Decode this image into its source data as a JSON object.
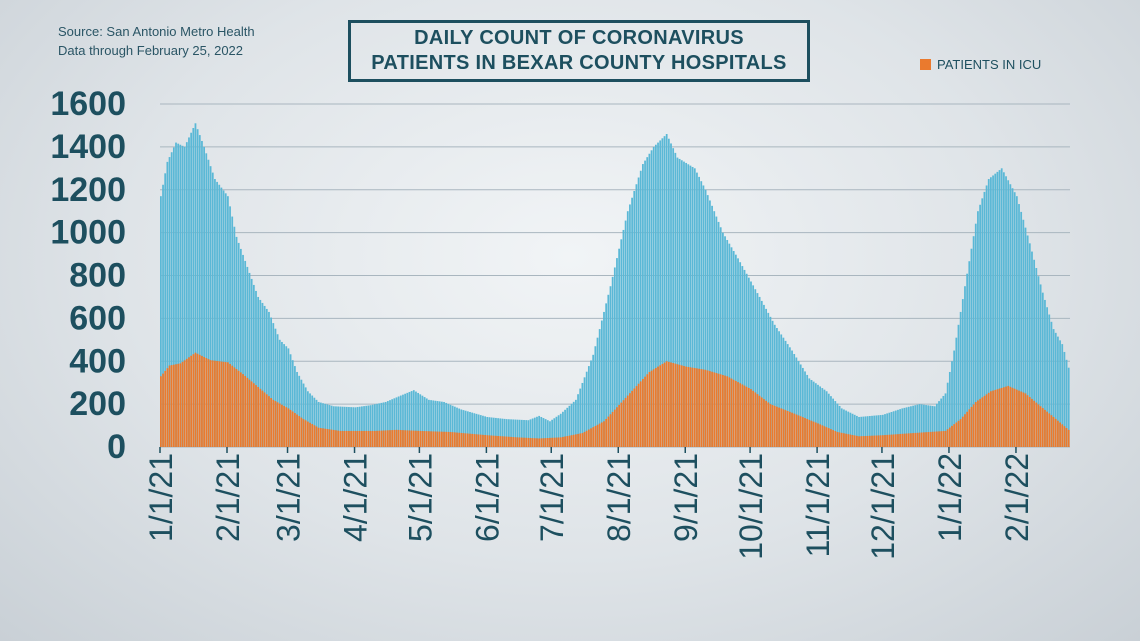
{
  "source_lines": [
    "Source: San Antonio Metro Health",
    "Data through February 25, 2022"
  ],
  "title_lines": [
    "DAILY COUNT OF CORONAVIRUS",
    "PATIENTS IN BEXAR COUNTY HOSPITALS"
  ],
  "legend": {
    "icu_label": "PATIENTS IN ICU"
  },
  "colors": {
    "total": "#5ab8d6",
    "icu": "#ea7a2e",
    "axis_text": "#1d4f5f",
    "grid": "#a9b6bf"
  },
  "chart_data": {
    "type": "bar",
    "title": "DAILY COUNT OF CORONAVIRUS PATIENTS IN BEXAR COUNTY HOSPITALS",
    "xlabel": "",
    "ylabel": "",
    "ylim": [
      0,
      1600
    ],
    "yticks": [
      0,
      200,
      400,
      600,
      800,
      1000,
      1200,
      1400,
      1600
    ],
    "x_tick_labels": [
      "1/1/21",
      "2/1/21",
      "3/1/21",
      "4/1/21",
      "5/1/21",
      "6/1/21",
      "7/1/21",
      "8/1/21",
      "9/1/21",
      "10/1/21",
      "11/1/21",
      "12/1/21",
      "1/1/22",
      "2/1/22"
    ],
    "grid": true,
    "legend_position": "top-right",
    "stacked": false,
    "x_start": "2021-01-01",
    "x_end": "2022-02-25",
    "series": [
      {
        "name": "",
        "key": "total",
        "keyframes": [
          [
            "2021-01-01",
            1170
          ],
          [
            "2021-01-04",
            1330
          ],
          [
            "2021-01-08",
            1420
          ],
          [
            "2021-01-12",
            1400
          ],
          [
            "2021-01-17",
            1510
          ],
          [
            "2021-01-21",
            1400
          ],
          [
            "2021-01-26",
            1250
          ],
          [
            "2021-02-01",
            1170
          ],
          [
            "2021-02-05",
            980
          ],
          [
            "2021-02-10",
            840
          ],
          [
            "2021-02-15",
            700
          ],
          [
            "2021-02-20",
            630
          ],
          [
            "2021-02-25",
            500
          ],
          [
            "2021-03-01",
            460
          ],
          [
            "2021-03-05",
            350
          ],
          [
            "2021-03-10",
            260
          ],
          [
            "2021-03-15",
            210
          ],
          [
            "2021-03-22",
            190
          ],
          [
            "2021-04-01",
            185
          ],
          [
            "2021-04-08",
            195
          ],
          [
            "2021-04-15",
            210
          ],
          [
            "2021-04-22",
            240
          ],
          [
            "2021-04-28",
            265
          ],
          [
            "2021-05-05",
            220
          ],
          [
            "2021-05-12",
            210
          ],
          [
            "2021-05-20",
            175
          ],
          [
            "2021-06-01",
            140
          ],
          [
            "2021-06-10",
            130
          ],
          [
            "2021-06-20",
            125
          ],
          [
            "2021-06-25",
            145
          ],
          [
            "2021-06-30",
            120
          ],
          [
            "2021-07-05",
            155
          ],
          [
            "2021-07-12",
            220
          ],
          [
            "2021-07-20",
            430
          ],
          [
            "2021-07-28",
            750
          ],
          [
            "2021-08-05",
            1100
          ],
          [
            "2021-08-12",
            1320
          ],
          [
            "2021-08-17",
            1400
          ],
          [
            "2021-08-23",
            1460
          ],
          [
            "2021-08-28",
            1350
          ],
          [
            "2021-09-05",
            1300
          ],
          [
            "2021-09-10",
            1200
          ],
          [
            "2021-09-18",
            1000
          ],
          [
            "2021-09-25",
            880
          ],
          [
            "2021-10-05",
            700
          ],
          [
            "2021-10-12",
            570
          ],
          [
            "2021-10-20",
            450
          ],
          [
            "2021-10-28",
            320
          ],
          [
            "2021-11-05",
            260
          ],
          [
            "2021-11-12",
            180
          ],
          [
            "2021-11-20",
            140
          ],
          [
            "2021-12-01",
            150
          ],
          [
            "2021-12-10",
            180
          ],
          [
            "2021-12-18",
            200
          ],
          [
            "2021-12-25",
            190
          ],
          [
            "2021-12-30",
            250
          ],
          [
            "2022-01-03",
            450
          ],
          [
            "2022-01-08",
            750
          ],
          [
            "2022-01-14",
            1100
          ],
          [
            "2022-01-19",
            1250
          ],
          [
            "2022-01-25",
            1300
          ],
          [
            "2022-02-01",
            1170
          ],
          [
            "2022-02-07",
            950
          ],
          [
            "2022-02-13",
            720
          ],
          [
            "2022-02-18",
            550
          ],
          [
            "2022-02-22",
            480
          ],
          [
            "2022-02-25",
            370
          ]
        ]
      },
      {
        "name": "PATIENTS IN ICU",
        "key": "icu",
        "keyframes": [
          [
            "2021-01-01",
            330
          ],
          [
            "2021-01-05",
            380
          ],
          [
            "2021-01-10",
            390
          ],
          [
            "2021-01-17",
            440
          ],
          [
            "2021-01-24",
            405
          ],
          [
            "2021-02-01",
            395
          ],
          [
            "2021-02-08",
            340
          ],
          [
            "2021-02-15",
            280
          ],
          [
            "2021-02-22",
            220
          ],
          [
            "2021-03-01",
            180
          ],
          [
            "2021-03-08",
            130
          ],
          [
            "2021-03-15",
            90
          ],
          [
            "2021-03-25",
            75
          ],
          [
            "2021-04-10",
            75
          ],
          [
            "2021-04-20",
            80
          ],
          [
            "2021-05-01",
            75
          ],
          [
            "2021-05-15",
            70
          ],
          [
            "2021-06-01",
            55
          ],
          [
            "2021-06-15",
            45
          ],
          [
            "2021-06-25",
            40
          ],
          [
            "2021-07-05",
            45
          ],
          [
            "2021-07-15",
            65
          ],
          [
            "2021-07-25",
            120
          ],
          [
            "2021-08-05",
            240
          ],
          [
            "2021-08-15",
            350
          ],
          [
            "2021-08-23",
            400
          ],
          [
            "2021-09-01",
            375
          ],
          [
            "2021-09-10",
            360
          ],
          [
            "2021-09-20",
            330
          ],
          [
            "2021-10-01",
            270
          ],
          [
            "2021-10-10",
            200
          ],
          [
            "2021-10-20",
            160
          ],
          [
            "2021-11-01",
            110
          ],
          [
            "2021-11-10",
            70
          ],
          [
            "2021-11-20",
            50
          ],
          [
            "2021-12-01",
            55
          ],
          [
            "2021-12-15",
            65
          ],
          [
            "2021-12-30",
            75
          ],
          [
            "2022-01-06",
            130
          ],
          [
            "2022-01-13",
            210
          ],
          [
            "2022-01-20",
            260
          ],
          [
            "2022-01-28",
            285
          ],
          [
            "2022-02-05",
            250
          ],
          [
            "2022-02-12",
            190
          ],
          [
            "2022-02-18",
            140
          ],
          [
            "2022-02-25",
            80
          ]
        ]
      }
    ]
  }
}
